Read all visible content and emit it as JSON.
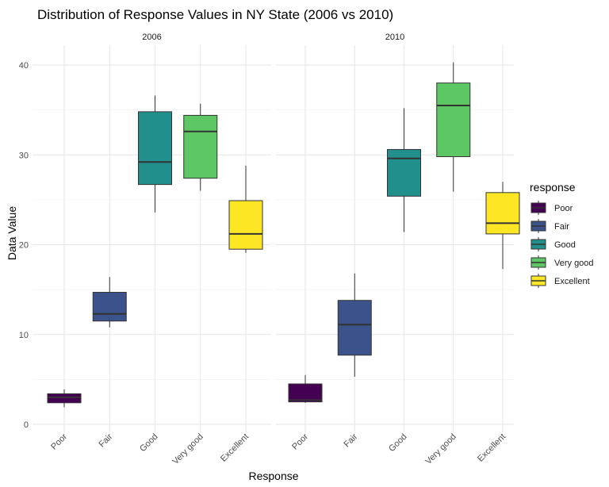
{
  "chart_data": {
    "type": "boxplot",
    "title": "Distribution of Response Values in NY State (2006 vs 2010)",
    "xlabel": "Response",
    "ylabel": "Data Value",
    "ylim": [
      0,
      42
    ],
    "yticks": [
      0,
      10,
      20,
      30,
      40
    ],
    "grid": true,
    "categories": [
      "Poor",
      "Fair",
      "Good",
      "Very good",
      "Excellent"
    ],
    "legend": {
      "title": "response",
      "position": "right",
      "entries": [
        "Poor",
        "Fair",
        "Good",
        "Very good",
        "Excellent"
      ]
    },
    "colors": {
      "Poor": "#440154",
      "Fair": "#3b528b",
      "Good": "#21908c",
      "Very good": "#5dc863",
      "Excellent": "#fde725"
    },
    "panels": [
      {
        "label": "2006",
        "boxes": [
          {
            "category": "Poor",
            "min": 1.9,
            "q1": 2.4,
            "median": 3.0,
            "q3": 3.4,
            "max": 3.9
          },
          {
            "category": "Fair",
            "min": 10.8,
            "q1": 11.5,
            "median": 12.3,
            "q3": 14.7,
            "max": 16.4
          },
          {
            "category": "Good",
            "min": 23.6,
            "q1": 26.7,
            "median": 29.2,
            "q3": 34.8,
            "max": 36.6
          },
          {
            "category": "Very good",
            "min": 26.0,
            "q1": 27.4,
            "median": 32.6,
            "q3": 34.4,
            "max": 35.7
          },
          {
            "category": "Excellent",
            "min": 19.1,
            "q1": 19.5,
            "median": 21.2,
            "q3": 24.9,
            "max": 28.8
          }
        ]
      },
      {
        "label": "2010",
        "boxes": [
          {
            "category": "Poor",
            "min": 2.4,
            "q1": 2.5,
            "median": 2.7,
            "q3": 4.5,
            "max": 5.5
          },
          {
            "category": "Fair",
            "min": 5.3,
            "q1": 7.7,
            "median": 11.1,
            "q3": 13.8,
            "max": 16.8
          },
          {
            "category": "Good",
            "min": 21.4,
            "q1": 25.4,
            "median": 29.6,
            "q3": 30.6,
            "max": 35.2
          },
          {
            "category": "Very good",
            "min": 25.9,
            "q1": 29.8,
            "median": 35.5,
            "q3": 38.0,
            "max": 40.3
          },
          {
            "category": "Excellent",
            "min": 17.3,
            "q1": 21.2,
            "median": 22.4,
            "q3": 25.8,
            "max": 27.0
          }
        ]
      }
    ]
  }
}
